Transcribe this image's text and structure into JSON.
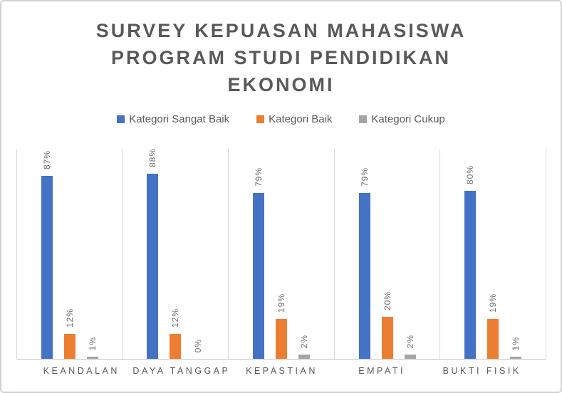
{
  "chart_data": {
    "type": "bar",
    "title": "SURVEY KEPUASAN MAHASISWA PROGRAM STUDI PENDIDIKAN EKONOMI",
    "title_lines": [
      "SURVEY KEPUASAN MAHASISWA",
      "PROGRAM STUDI PENDIDIKAN",
      "EKONOMI"
    ],
    "categories": [
      "KEANDALAN",
      "DAYA TANGGAP",
      "KEPASTIAN",
      "EMPATI",
      "BUKTI FISIK"
    ],
    "series": [
      {
        "name": "Kategori Sangat Baik",
        "color": "#4472C4",
        "values": [
          87,
          88,
          79,
          79,
          80
        ],
        "labels": [
          "87%",
          "88%",
          "79%",
          "79%",
          "80%"
        ]
      },
      {
        "name": "Kategori Baik",
        "color": "#ED7D31",
        "values": [
          12,
          12,
          19,
          20,
          19
        ],
        "labels": [
          "12%",
          "12%",
          "19%",
          "20%",
          "19%"
        ]
      },
      {
        "name": "Kategori Cukup",
        "color": "#A5A5A5",
        "values": [
          1,
          0,
          2,
          2,
          1
        ],
        "labels": [
          "1%",
          "0%",
          "2%",
          "2%",
          "1%"
        ]
      }
    ],
    "ylim": [
      0,
      100
    ],
    "legend_position": "top",
    "grid": "vertical category separator lines only",
    "data_labels": "outside end, rotated 90 degrees"
  },
  "colors": {
    "title_text": "#595959",
    "legend_text": "#595959",
    "axis_label_text": "#595959",
    "data_label_text": "#6d6d6d",
    "gridline": "#D9D9D9",
    "axis_line": "#C6C6C6",
    "frame_border": "#D3D1D1",
    "background": "#FFFFFF"
  }
}
